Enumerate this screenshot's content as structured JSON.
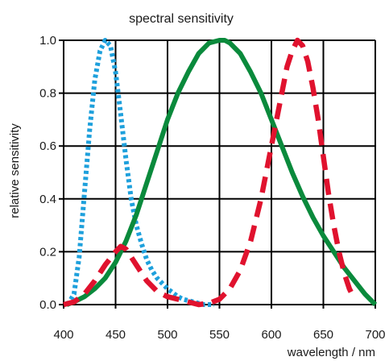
{
  "chart_data": {
    "type": "line",
    "title": "spectral sensitivity",
    "xlabel": "wavelength / nm",
    "ylabel": "relative sensitivity",
    "xlim": [
      400,
      700
    ],
    "ylim": [
      0,
      1
    ],
    "x_ticks": [
      "400",
      "450",
      "500",
      "550",
      "600",
      "650",
      "700"
    ],
    "y_ticks": [
      "0.0",
      "0.2",
      "0.4",
      "0.6",
      "0.8",
      "1.0"
    ],
    "grid": true,
    "legend": "none",
    "series": [
      {
        "color": "#1ea0dc",
        "style": "dotted",
        "x": [
          404,
          410,
          415,
          420,
          425,
          430,
          435,
          440,
          445,
          450,
          455,
          460,
          465,
          470,
          475,
          480,
          485,
          490,
          495,
          500,
          505,
          510,
          515,
          520,
          525,
          530,
          535,
          540,
          545
        ],
        "y": [
          0.0,
          0.04,
          0.18,
          0.42,
          0.66,
          0.85,
          0.96,
          1.0,
          0.98,
          0.88,
          0.72,
          0.55,
          0.4,
          0.3,
          0.23,
          0.17,
          0.13,
          0.1,
          0.08,
          0.06,
          0.045,
          0.03,
          0.02,
          0.015,
          0.01,
          0.005,
          0.0,
          0.0,
          0.0
        ]
      },
      {
        "color": "#0a8a3c",
        "style": "solid",
        "x": [
          403,
          410,
          420,
          430,
          440,
          450,
          460,
          470,
          480,
          490,
          500,
          510,
          520,
          530,
          540,
          550,
          555,
          560,
          570,
          580,
          590,
          600,
          610,
          620,
          630,
          640,
          650,
          660,
          670,
          680,
          690,
          700
        ],
        "y": [
          0.0,
          0.01,
          0.03,
          0.06,
          0.1,
          0.16,
          0.24,
          0.34,
          0.46,
          0.58,
          0.7,
          0.8,
          0.88,
          0.95,
          0.99,
          1.0,
          1.0,
          0.99,
          0.95,
          0.88,
          0.8,
          0.7,
          0.6,
          0.5,
          0.41,
          0.33,
          0.26,
          0.2,
          0.14,
          0.09,
          0.04,
          0.0
        ]
      },
      {
        "color": "#e0122e",
        "style": "dashed",
        "x": [
          400,
          410,
          420,
          430,
          440,
          450,
          455,
          460,
          470,
          480,
          490,
          500,
          510,
          520,
          530,
          540,
          550,
          560,
          570,
          580,
          590,
          600,
          610,
          615,
          620,
          625,
          630,
          635,
          640,
          645,
          650,
          655,
          660,
          665,
          670,
          675,
          680
        ],
        "y": [
          0.0,
          0.01,
          0.04,
          0.09,
          0.15,
          0.2,
          0.22,
          0.21,
          0.15,
          0.09,
          0.05,
          0.03,
          0.02,
          0.01,
          0.0,
          0.005,
          0.02,
          0.06,
          0.13,
          0.24,
          0.4,
          0.6,
          0.8,
          0.9,
          0.96,
          1.0,
          0.98,
          0.92,
          0.82,
          0.7,
          0.56,
          0.42,
          0.3,
          0.2,
          0.12,
          0.06,
          0.02
        ]
      }
    ]
  }
}
